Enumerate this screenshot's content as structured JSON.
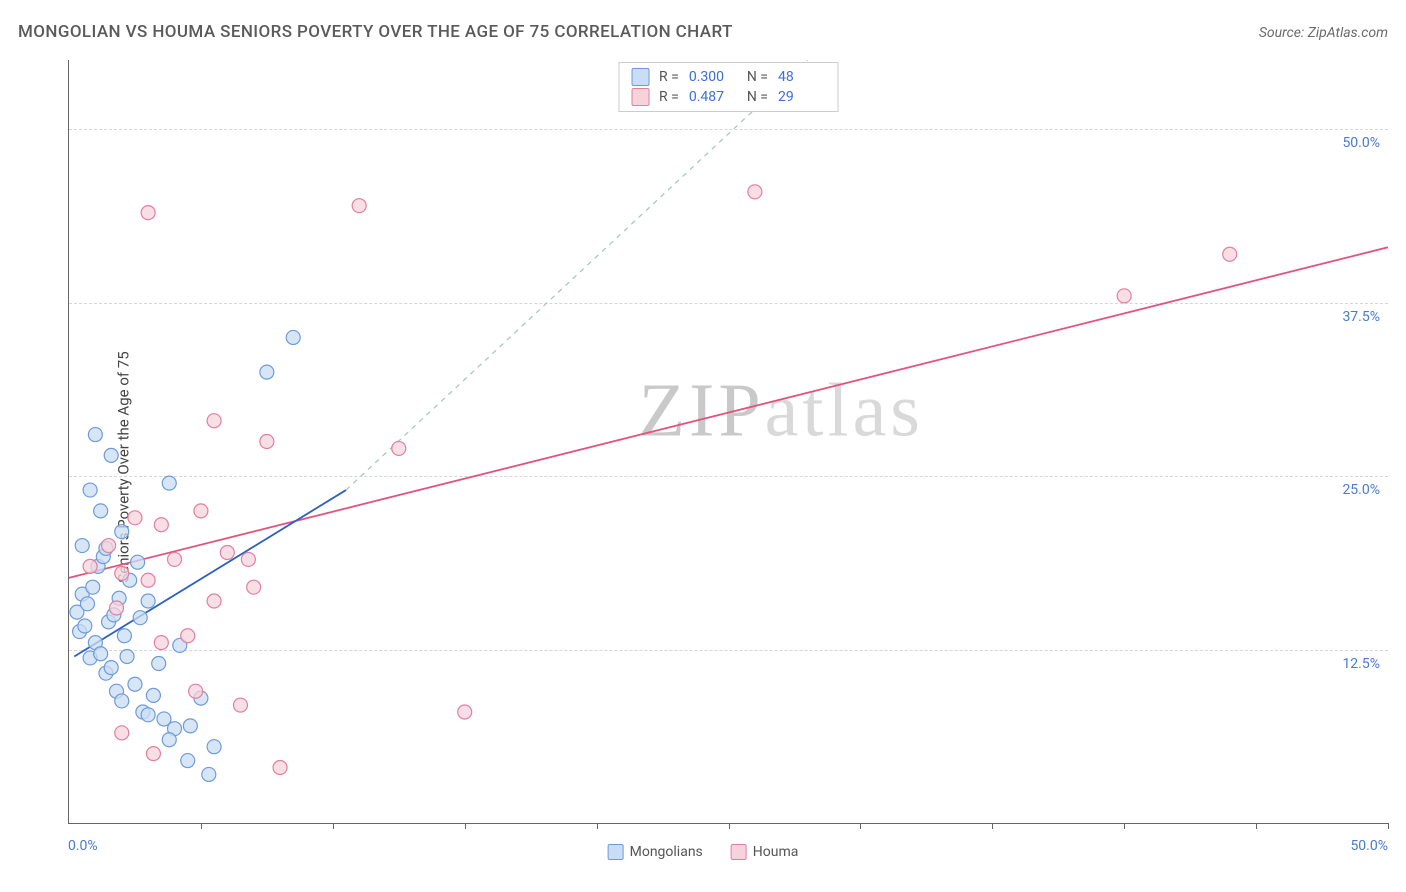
{
  "title": "MONGOLIAN VS HOUMA SENIORS POVERTY OVER THE AGE OF 75 CORRELATION CHART",
  "source": "Source: ZipAtlas.com",
  "watermark": {
    "prefix": "ZIP",
    "suffix": "atlas"
  },
  "y_axis": {
    "label": "Seniors Poverty Over the Age of 75"
  },
  "x_axis": {
    "start_label": "0.0%",
    "end_label": "50.0%"
  },
  "chart": {
    "type": "scatter",
    "xlim": [
      0,
      50
    ],
    "ylim": [
      0,
      55
    ],
    "x_tick_step": 5,
    "y_ticks": [
      12.5,
      25.0,
      37.5,
      50.0
    ],
    "y_tick_labels": [
      "12.5%",
      "25.0%",
      "37.5%",
      "50.0%"
    ],
    "grid_color": "#d6d6d6",
    "axis_color": "#666666",
    "background_color": "#ffffff",
    "marker_radius": 7,
    "marker_stroke_width": 1.2,
    "trend_line_width": 1.8
  },
  "series": {
    "mongolians": {
      "label": "Mongolians",
      "fill": "#c9ddf4",
      "stroke": "#6f9bd8",
      "trend_color": "#2d5fc4",
      "trend_dash_color": "#a9c3b4",
      "R": "0.300",
      "N": "48",
      "trend_solid": {
        "x1": 0.2,
        "y1": 12.0,
        "x2": 10.5,
        "y2": 24.0
      },
      "trend_dash": {
        "x1": 10.5,
        "y1": 24.0,
        "x2": 28.0,
        "y2": 55.0
      },
      "points": [
        [
          0.3,
          15.2
        ],
        [
          0.4,
          13.8
        ],
        [
          0.5,
          16.5
        ],
        [
          0.6,
          14.2
        ],
        [
          0.7,
          15.8
        ],
        [
          0.8,
          11.9
        ],
        [
          0.9,
          17.0
        ],
        [
          1.0,
          13.0
        ],
        [
          1.1,
          18.5
        ],
        [
          1.2,
          12.2
        ],
        [
          1.3,
          19.2
        ],
        [
          1.4,
          10.8
        ],
        [
          1.5,
          14.5
        ],
        [
          1.6,
          11.2
        ],
        [
          1.7,
          15.0
        ],
        [
          1.8,
          9.5
        ],
        [
          1.9,
          16.2
        ],
        [
          2.0,
          8.8
        ],
        [
          2.1,
          13.5
        ],
        [
          2.2,
          12.0
        ],
        [
          2.3,
          17.5
        ],
        [
          2.5,
          10.0
        ],
        [
          2.7,
          14.8
        ],
        [
          2.8,
          8.0
        ],
        [
          3.0,
          16.0
        ],
        [
          3.2,
          9.2
        ],
        [
          3.4,
          11.5
        ],
        [
          3.6,
          7.5
        ],
        [
          3.8,
          24.5
        ],
        [
          4.0,
          6.8
        ],
        [
          0.8,
          24.0
        ],
        [
          1.2,
          22.5
        ],
        [
          1.6,
          26.5
        ],
        [
          4.2,
          12.8
        ],
        [
          4.6,
          7.0
        ],
        [
          5.0,
          9.0
        ],
        [
          5.5,
          5.5
        ],
        [
          1.0,
          28.0
        ],
        [
          1.4,
          19.8
        ],
        [
          2.0,
          21.0
        ],
        [
          0.5,
          20.0
        ],
        [
          3.8,
          6.0
        ],
        [
          4.5,
          4.5
        ],
        [
          5.3,
          3.5
        ],
        [
          8.5,
          35.0
        ],
        [
          7.5,
          32.5
        ],
        [
          2.6,
          18.8
        ],
        [
          3.0,
          7.8
        ]
      ]
    },
    "houma": {
      "label": "Houma",
      "fill": "#f6d3dc",
      "stroke": "#e37fa0",
      "trend_color": "#e0547f",
      "R": "0.487",
      "N": "29",
      "trend_solid": {
        "x1": -1.0,
        "y1": 17.2,
        "x2": 50.0,
        "y2": 41.5
      },
      "points": [
        [
          0.8,
          18.5
        ],
        [
          1.5,
          20.0
        ],
        [
          2.0,
          18.0
        ],
        [
          2.5,
          22.0
        ],
        [
          3.0,
          17.5
        ],
        [
          3.5,
          21.5
        ],
        [
          4.0,
          19.0
        ],
        [
          4.5,
          13.5
        ],
        [
          5.0,
          22.5
        ],
        [
          5.5,
          16.0
        ],
        [
          6.0,
          19.5
        ],
        [
          6.5,
          8.5
        ],
        [
          7.0,
          17.0
        ],
        [
          3.0,
          44.0
        ],
        [
          8.0,
          4.0
        ],
        [
          5.5,
          29.0
        ],
        [
          11.0,
          44.5
        ],
        [
          12.5,
          27.0
        ],
        [
          15.0,
          8.0
        ],
        [
          3.5,
          13.0
        ],
        [
          2.0,
          6.5
        ],
        [
          4.8,
          9.5
        ],
        [
          3.2,
          5.0
        ],
        [
          1.8,
          15.5
        ],
        [
          6.8,
          19.0
        ],
        [
          26.0,
          45.5
        ],
        [
          40.0,
          38.0
        ],
        [
          44.0,
          41.0
        ],
        [
          7.5,
          27.5
        ]
      ]
    }
  },
  "stats_box_labels": {
    "R": "R =",
    "N": "N ="
  }
}
